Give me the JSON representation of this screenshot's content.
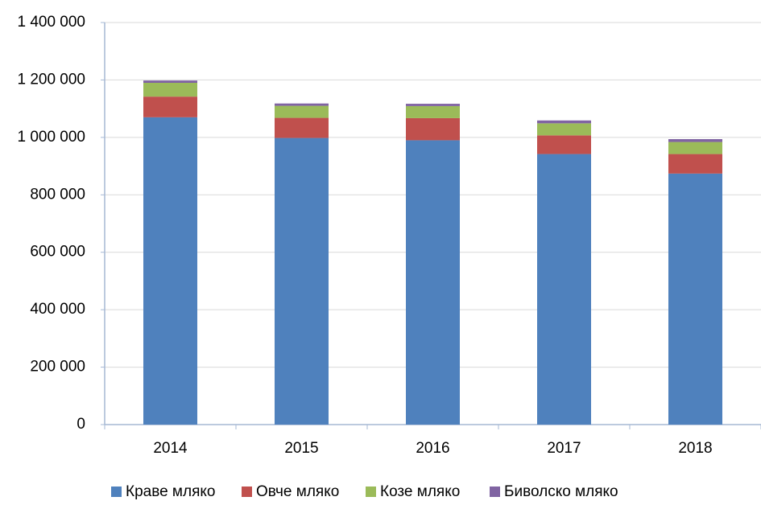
{
  "chart_data": {
    "type": "stacked_bar",
    "categories": [
      "2014",
      "2015",
      "2016",
      "2017",
      "2018"
    ],
    "series": [
      {
        "name": "Краве мляко",
        "color": "#4f81bd",
        "values": [
          1070000,
          998000,
          990000,
          942000,
          874000
        ]
      },
      {
        "name": "Овче мляко",
        "color": "#c0504d",
        "values": [
          72000,
          70000,
          77000,
          65000,
          68000
        ]
      },
      {
        "name": "Козе мляко",
        "color": "#9bbb59",
        "values": [
          48000,
          42000,
          42000,
          42000,
          42000
        ]
      },
      {
        "name": "Биволско мляко",
        "color": "#8064a2",
        "values": [
          8000,
          8000,
          8000,
          10000,
          10000
        ]
      }
    ],
    "ylim": [
      0,
      1400000
    ],
    "yticks": [
      0,
      {
        "value": 200000,
        "label": "200 000"
      },
      {
        "value": 400000,
        "label": "400 000"
      },
      {
        "value": 600000,
        "label": "600 000"
      },
      {
        "value": 800000,
        "label": "800 000"
      },
      {
        "value": 1000000,
        "label": "1 000 000"
      },
      {
        "value": 1200000,
        "label": "1 200 000"
      },
      {
        "value": 1400000,
        "label": "1 400 000"
      }
    ],
    "grid": true,
    "legend": "bottom"
  }
}
